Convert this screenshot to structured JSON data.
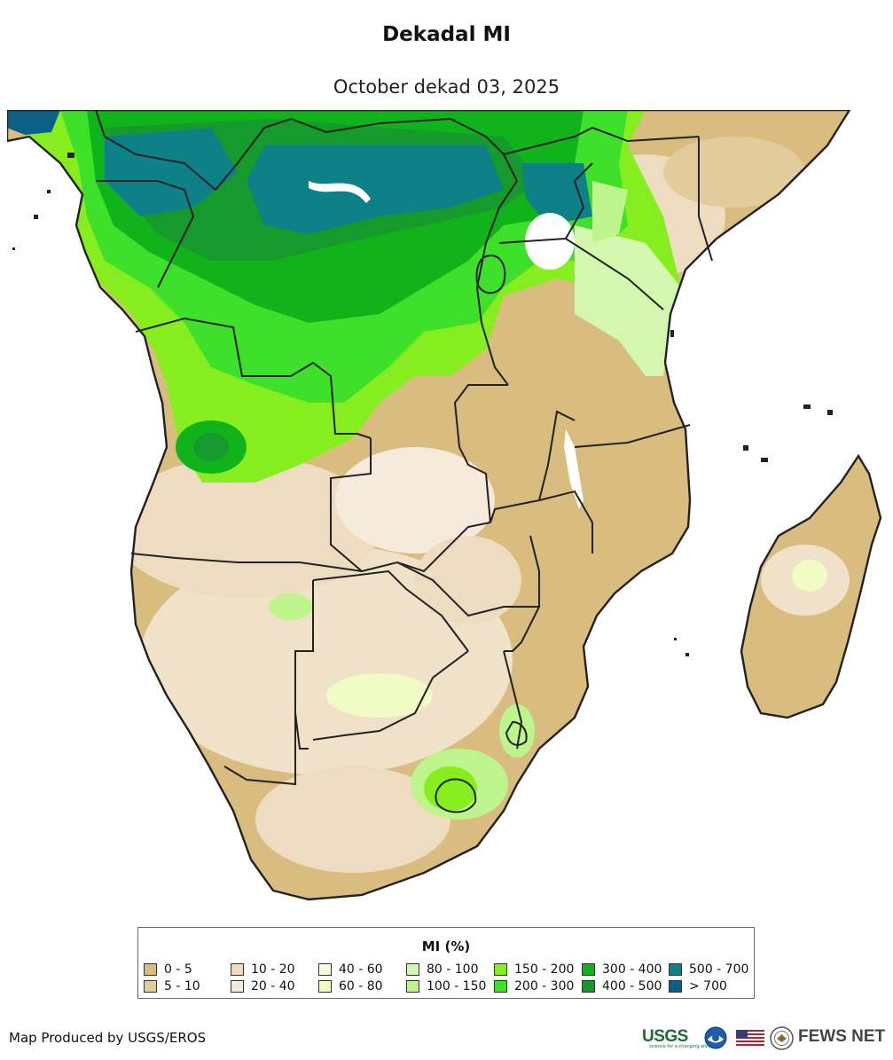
{
  "header": {
    "title": "Dekadal MI",
    "subtitle": "October dekad 03, 2025"
  },
  "legend": {
    "title": "MI (%)",
    "items": [
      {
        "label": "0 - 5",
        "color": "#d8bc80"
      },
      {
        "label": "5 - 10",
        "color": "#e2cc9c"
      },
      {
        "label": "10 - 20",
        "color": "#eedcc0"
      },
      {
        "label": "20 - 40",
        "color": "#f6eadc"
      },
      {
        "label": "40 - 60",
        "color": "#fbfbe0"
      },
      {
        "label": "60 - 80",
        "color": "#f0fcc4"
      },
      {
        "label": "80 - 100",
        "color": "#d4f7b0"
      },
      {
        "label": "100 - 150",
        "color": "#bdf58c"
      },
      {
        "label": "150 - 200",
        "color": "#86ee1e"
      },
      {
        "label": "200 - 300",
        "color": "#3ee02a"
      },
      {
        "label": "300 - 400",
        "color": "#10b41a"
      },
      {
        "label": "400 - 500",
        "color": "#169a2c"
      },
      {
        "label": "500 - 700",
        "color": "#0d8088"
      },
      {
        "label": "> 700",
        "color": "#0c5f86"
      }
    ]
  },
  "footer": {
    "credit": "Map Produced by USGS/EROS",
    "usgs_logo": "USGS",
    "usgs_tagline": "science for a changing world",
    "fews_logo": "FEWS NET",
    "icons": [
      "usgs-logo",
      "noaa-logo-icon",
      "us-flag-icon",
      "state-dept-seal-icon"
    ]
  },
  "colors": {
    "border": "#222222",
    "water": "#ffffff"
  }
}
